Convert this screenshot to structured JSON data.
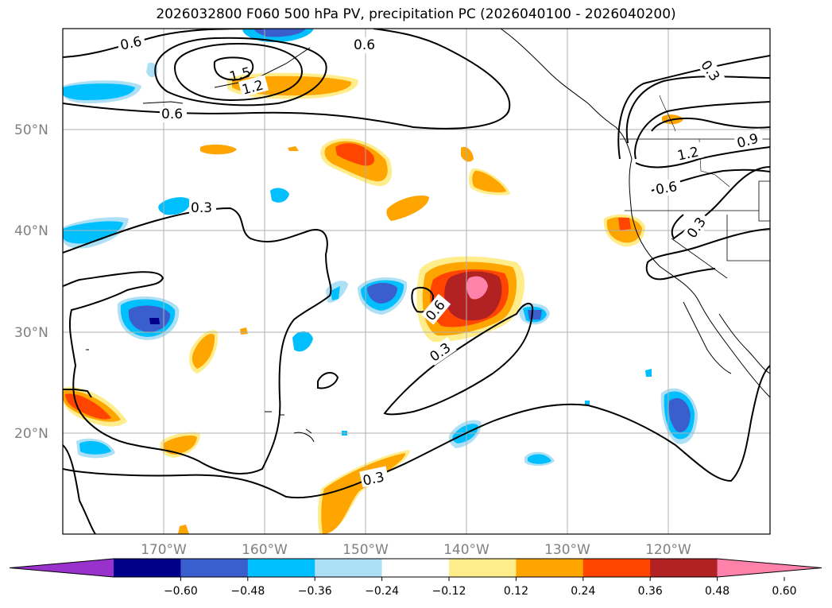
{
  "title": "2026032800 F060 500 hPa PV, precipitation PC (2026040100 - 2026040200)",
  "map": {
    "lon_labels": [
      "170°W",
      "160°W",
      "150°W",
      "140°W",
      "130°W",
      "120°W"
    ],
    "lat_labels": [
      "50°N",
      "40°N",
      "30°N",
      "20°N"
    ],
    "contour_labels": [
      "0.6",
      "0.6",
      "0.6",
      "1.2",
      "1.5",
      "0.3",
      "0.6",
      "0.3",
      "0.3",
      "0.6",
      "1.2",
      "0.9",
      "0.3",
      "0.3"
    ]
  },
  "colorbar": {
    "ticks": [
      "−0.60",
      "−0.48",
      "−0.36",
      "−0.24",
      "−0.12",
      "0.12",
      "0.24",
      "0.36",
      "0.48",
      "0.60"
    ],
    "colors": [
      "#9932CC",
      "#00008B",
      "#3A5FCD",
      "#00BFFF",
      "#ADDFF5",
      "#FFFFFF",
      "#FFEC8B",
      "#FFA500",
      "#FF4500",
      "#B22222",
      "#FF82AB"
    ]
  }
}
